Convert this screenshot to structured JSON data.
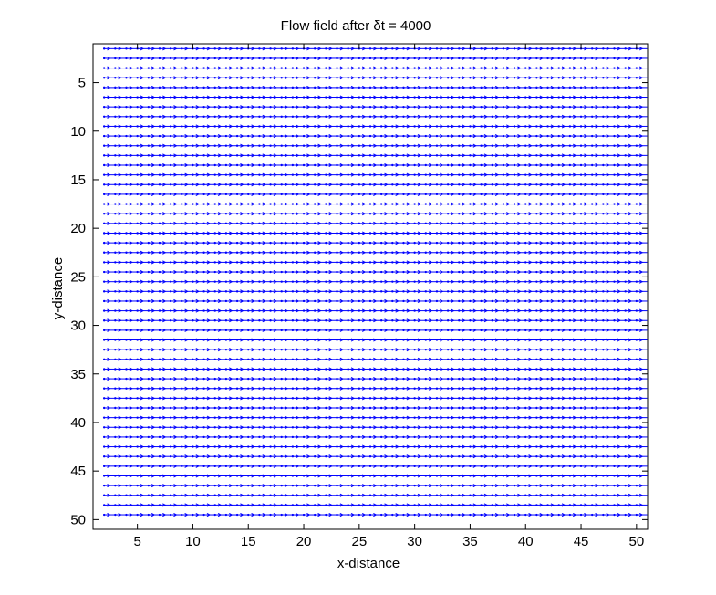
{
  "chart_data": {
    "type": "quiver",
    "title": "Flow field after  δt = 4000",
    "xlabel": "x-distance",
    "ylabel": "y-distance",
    "xlim": [
      1,
      51
    ],
    "ylim": [
      1,
      51
    ],
    "y_axis_reversed": true,
    "x_ticks": [
      5,
      10,
      15,
      20,
      25,
      30,
      35,
      40,
      45,
      50
    ],
    "y_ticks": [
      5,
      10,
      15,
      20,
      25,
      30,
      35,
      40,
      45,
      50
    ],
    "grid": false,
    "vector_field": {
      "x_range": [
        2,
        50
      ],
      "y_range": [
        1.5,
        50
      ],
      "x_step": 1,
      "y_step": 1,
      "direction": "positive-x",
      "u": 1,
      "v": 0
    },
    "colors": {
      "arrows": "#0000ff",
      "axes": "#000000",
      "background": "#ffffff"
    }
  }
}
